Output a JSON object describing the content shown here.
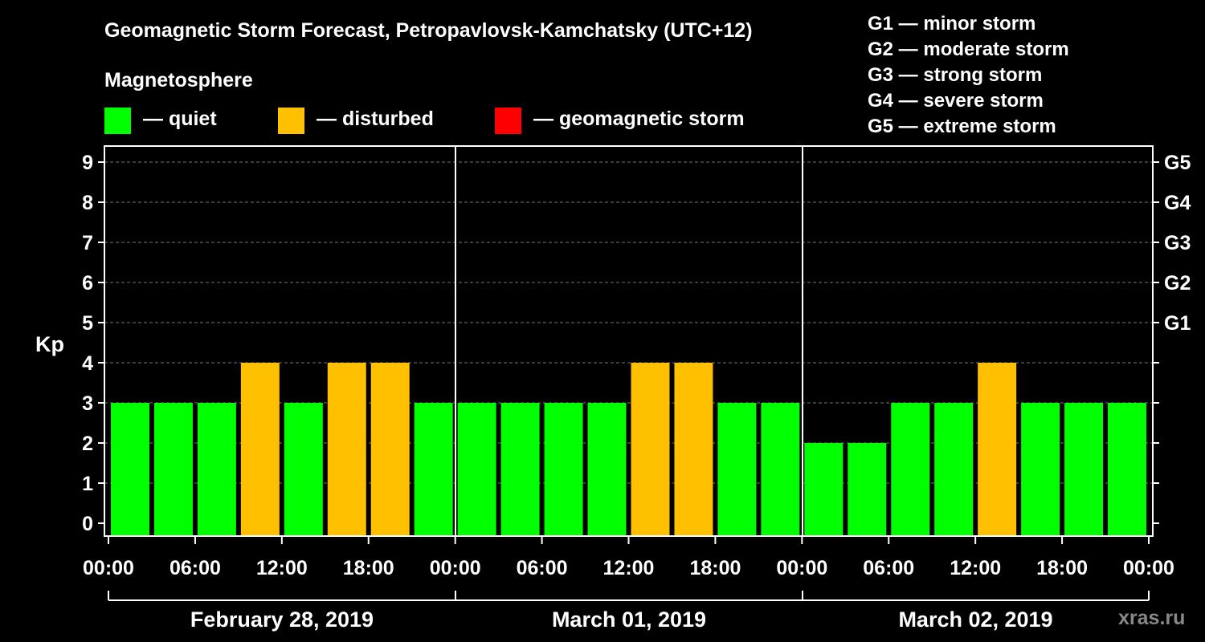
{
  "title": "Geomagnetic Storm Forecast, Petropavlovsk-Kamchatsky (UTC+12)",
  "legend": {
    "heading": "Magnetosphere",
    "items": [
      {
        "label": "— quiet",
        "color": "#00ff00"
      },
      {
        "label": "— disturbed",
        "color": "#ffc000"
      },
      {
        "label": "— geomagnetic storm",
        "color": "#ff0000"
      }
    ]
  },
  "storm_levels": [
    "G1 — minor storm",
    "G2 — moderate storm",
    "G3 — strong storm",
    "G4 — severe storm",
    "G5 — extreme storm"
  ],
  "watermark": "xras.ru",
  "chart_data": {
    "type": "bar",
    "ylabel": "Kp",
    "ylim": [
      0,
      9
    ],
    "yticks": [
      "0",
      "1",
      "2",
      "3",
      "4",
      "5",
      "6",
      "7",
      "8",
      "9"
    ],
    "right_ticks": [
      {
        "kp": 5,
        "label": "G1"
      },
      {
        "kp": 6,
        "label": "G2"
      },
      {
        "kp": 7,
        "label": "G3"
      },
      {
        "kp": 8,
        "label": "G4"
      },
      {
        "kp": 9,
        "label": "G5"
      }
    ],
    "xticks": [
      "00:00",
      "06:00",
      "12:00",
      "18:00",
      "00:00",
      "06:00",
      "12:00",
      "18:00",
      "00:00",
      "06:00",
      "12:00",
      "18:00",
      "00:00"
    ],
    "days": [
      "February 28, 2019",
      "March 01, 2019",
      "March 02, 2019"
    ],
    "values": [
      3,
      3,
      3,
      4,
      3,
      4,
      4,
      3,
      3,
      3,
      3,
      3,
      4,
      4,
      3,
      3,
      2,
      2,
      3,
      3,
      4,
      3,
      3,
      3
    ],
    "grid": true,
    "colors": {
      "quiet": "#00ff00",
      "disturbed": "#ffc000",
      "storm": "#ff0000"
    }
  }
}
